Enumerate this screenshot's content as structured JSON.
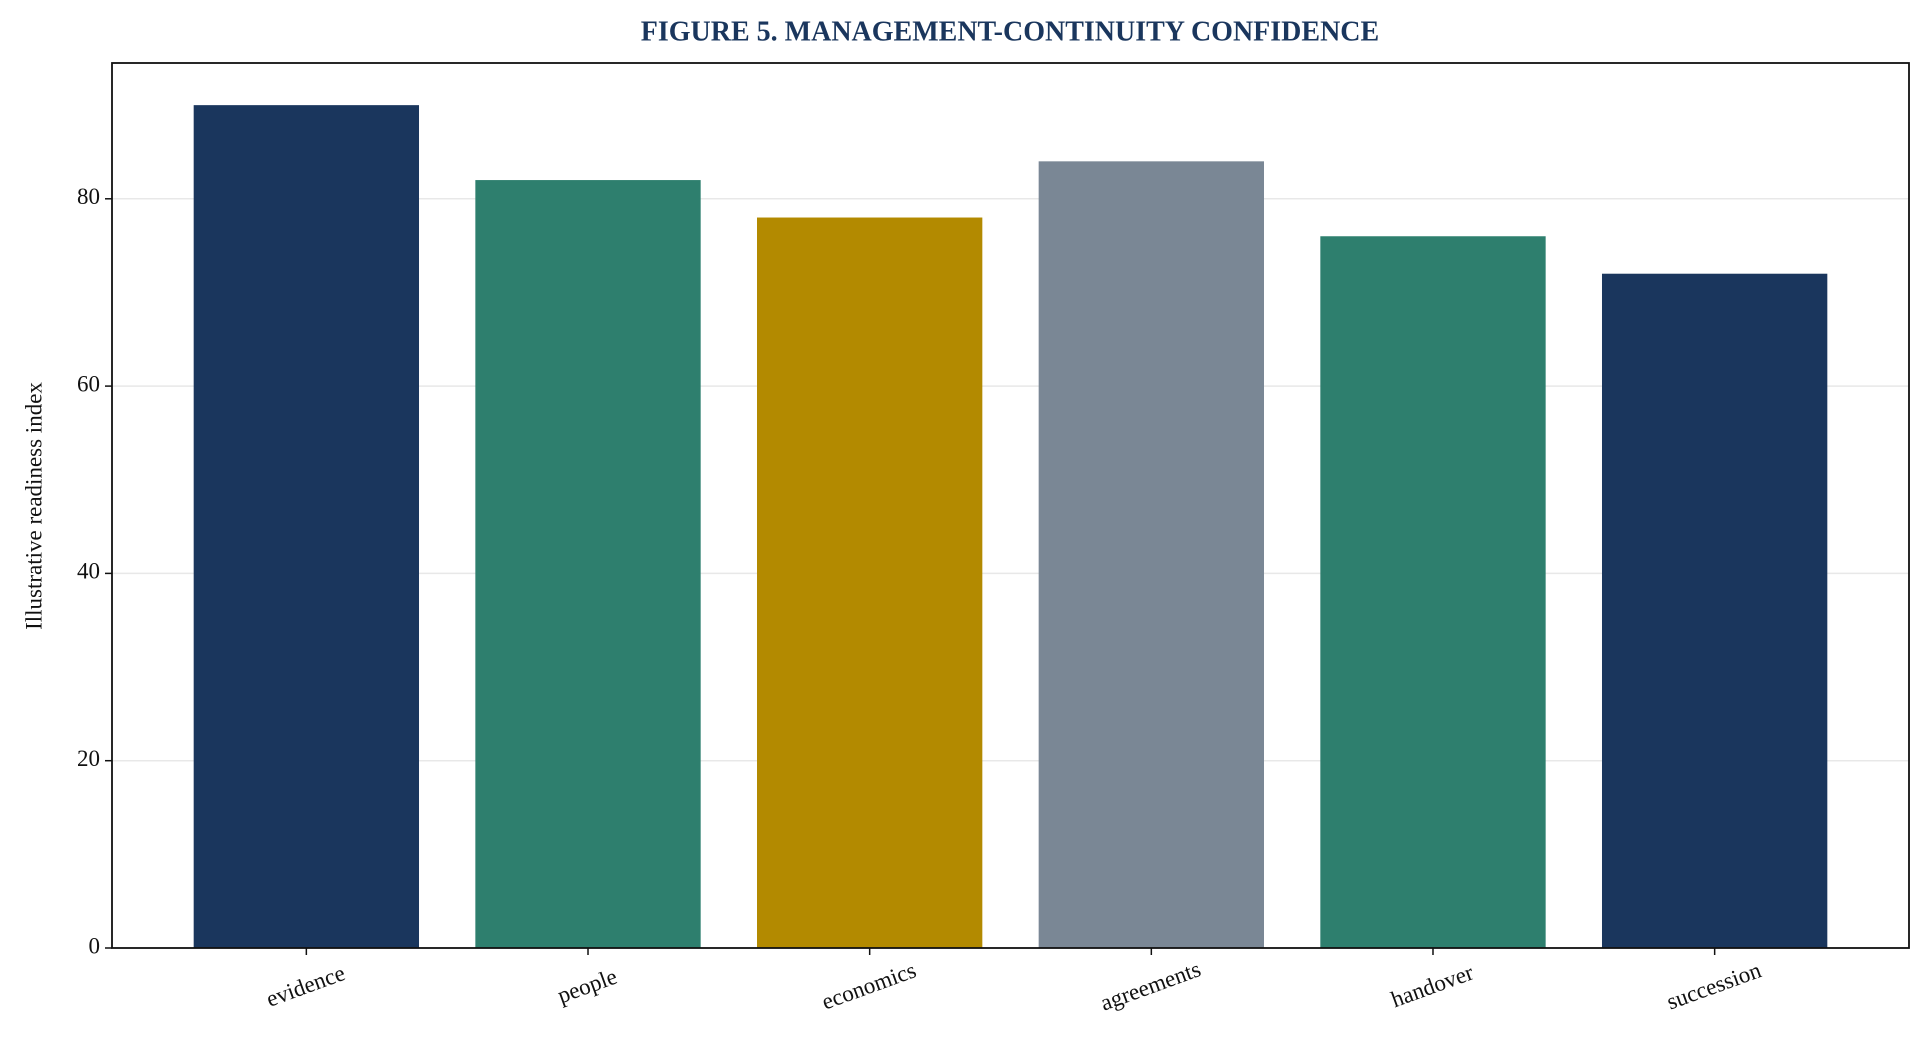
{
  "chart_data": {
    "type": "bar",
    "title": "FIGURE 5. MANAGEMENT-CONTINUITY CONFIDENCE",
    "y_label": "Illustrative readiness index",
    "categories": [
      "evidence",
      "people",
      "economics",
      "agreements",
      "handover",
      "succession"
    ],
    "values": [
      90,
      82,
      78,
      84,
      76,
      72
    ],
    "colors": [
      "#1a365d",
      "#2e7f6e",
      "#b38a00",
      "#7a8795",
      "#2e7f6e",
      "#1a365d"
    ],
    "ylim": [
      0,
      94.5
    ],
    "yticks": [
      0,
      20,
      40,
      60,
      80
    ],
    "grid": true
  }
}
